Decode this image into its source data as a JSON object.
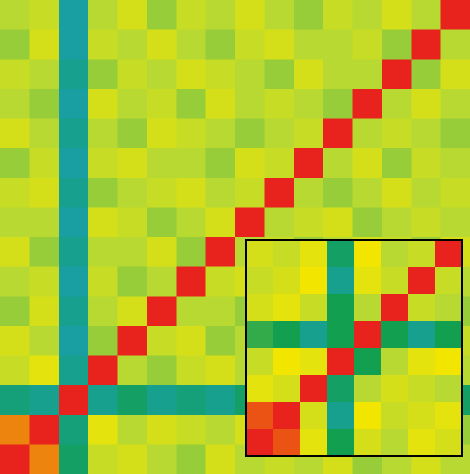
{
  "chart_data": {
    "type": "heatmap",
    "colormap": [
      {
        "value": 0,
        "color": "#1e9fe0"
      },
      {
        "value": 0.35,
        "color": "#12a050"
      },
      {
        "value": 0.6,
        "color": "#b8d832"
      },
      {
        "value": 0.8,
        "color": "#f2e600"
      },
      {
        "value": 1,
        "color": "#e8221c"
      }
    ],
    "values": [
      [
        0.6,
        0.65,
        0.15,
        0.6,
        0.7,
        0.55,
        0.65,
        0.6,
        0.7,
        0.6,
        0.55,
        0.65,
        0.6,
        0.7,
        0.6,
        1
      ],
      [
        0.55,
        0.7,
        0.15,
        0.65,
        0.6,
        0.7,
        0.6,
        0.55,
        0.65,
        0.7,
        0.6,
        0.6,
        0.65,
        0.55,
        1,
        0.6
      ],
      [
        0.65,
        0.6,
        0.2,
        0.55,
        0.65,
        0.6,
        0.7,
        0.65,
        0.6,
        0.55,
        0.7,
        0.6,
        0.6,
        1,
        0.55,
        0.7
      ],
      [
        0.6,
        0.55,
        0.15,
        0.7,
        0.6,
        0.65,
        0.55,
        0.7,
        0.6,
        0.65,
        0.6,
        0.55,
        1,
        0.6,
        0.7,
        0.6
      ],
      [
        0.7,
        0.6,
        0.2,
        0.6,
        0.55,
        0.7,
        0.65,
        0.6,
        0.55,
        0.6,
        0.65,
        1,
        0.6,
        0.65,
        0.6,
        0.55
      ],
      [
        0.55,
        0.65,
        0.15,
        0.65,
        0.7,
        0.6,
        0.6,
        0.55,
        0.7,
        0.65,
        1,
        0.6,
        0.7,
        0.55,
        0.65,
        0.6
      ],
      [
        0.65,
        0.7,
        0.2,
        0.55,
        0.6,
        0.65,
        0.7,
        0.6,
        0.65,
        1,
        0.6,
        0.55,
        0.6,
        0.7,
        0.6,
        0.65
      ],
      [
        0.6,
        0.6,
        0.15,
        0.7,
        0.65,
        0.55,
        0.6,
        0.7,
        1,
        0.6,
        0.65,
        0.7,
        0.55,
        0.6,
        0.65,
        0.6
      ],
      [
        0.7,
        0.55,
        0.2,
        0.6,
        0.6,
        0.7,
        0.55,
        1,
        0.6,
        0.65,
        0.55,
        0.6,
        0.7,
        0.65,
        0.55,
        0.7
      ],
      [
        0.6,
        0.65,
        0.15,
        0.65,
        0.55,
        0.6,
        1,
        0.65,
        0.7,
        0.6,
        0.6,
        0.65,
        0.6,
        0.55,
        0.7,
        0.6
      ],
      [
        0.55,
        0.7,
        0.2,
        0.6,
        0.7,
        1,
        0.6,
        0.6,
        0.55,
        0.7,
        0.65,
        0.6,
        0.65,
        0.6,
        0.6,
        0.55
      ],
      [
        0.7,
        0.6,
        0.15,
        0.55,
        1,
        0.65,
        0.7,
        0.55,
        0.6,
        0.6,
        0.7,
        0.65,
        0.55,
        0.7,
        0.6,
        0.65
      ],
      [
        0.65,
        0.75,
        0.2,
        1,
        0.6,
        0.55,
        0.65,
        0.7,
        0.6,
        0.55,
        0.6,
        0.7,
        0.6,
        0.65,
        0.55,
        0.6
      ],
      [
        0.25,
        0.2,
        1,
        0.2,
        0.3,
        0.2,
        0.25,
        0.2,
        0.3,
        0.2,
        0.25,
        0.3,
        0.2,
        0.25,
        0.2,
        0.3
      ],
      [
        0.9,
        1,
        0.25,
        0.75,
        0.6,
        0.7,
        0.65,
        0.6,
        0.7,
        0.55,
        0.65,
        0.6,
        0.7,
        0.6,
        0.65,
        0.55
      ],
      [
        1,
        0.9,
        0.3,
        0.65,
        0.7,
        0.6,
        0.55,
        0.7,
        0.6,
        0.65,
        0.6,
        0.7,
        0.55,
        0.6,
        0.7,
        0.6
      ]
    ],
    "inset_values": [
      [
        0.7,
        0.65,
        0.75,
        0.3,
        0.8,
        0.6,
        0.65,
        1
      ],
      [
        0.65,
        0.7,
        0.8,
        0.2,
        0.75,
        0.65,
        1,
        0.65
      ],
      [
        0.7,
        0.75,
        0.65,
        0.35,
        0.6,
        1,
        0.65,
        0.6
      ],
      [
        0.4,
        0.35,
        0.2,
        0.35,
        1,
        0.35,
        0.2,
        0.35
      ],
      [
        0.65,
        0.8,
        0.75,
        1,
        0.35,
        0.6,
        0.75,
        0.8
      ],
      [
        0.75,
        0.7,
        1,
        0.3,
        0.6,
        0.7,
        0.65,
        0.6
      ],
      [
        0.95,
        1,
        0.7,
        0.2,
        0.8,
        0.65,
        0.7,
        0.75
      ],
      [
        1,
        0.95,
        0.75,
        0.35,
        0.7,
        0.6,
        0.75,
        0.7
      ]
    ]
  }
}
